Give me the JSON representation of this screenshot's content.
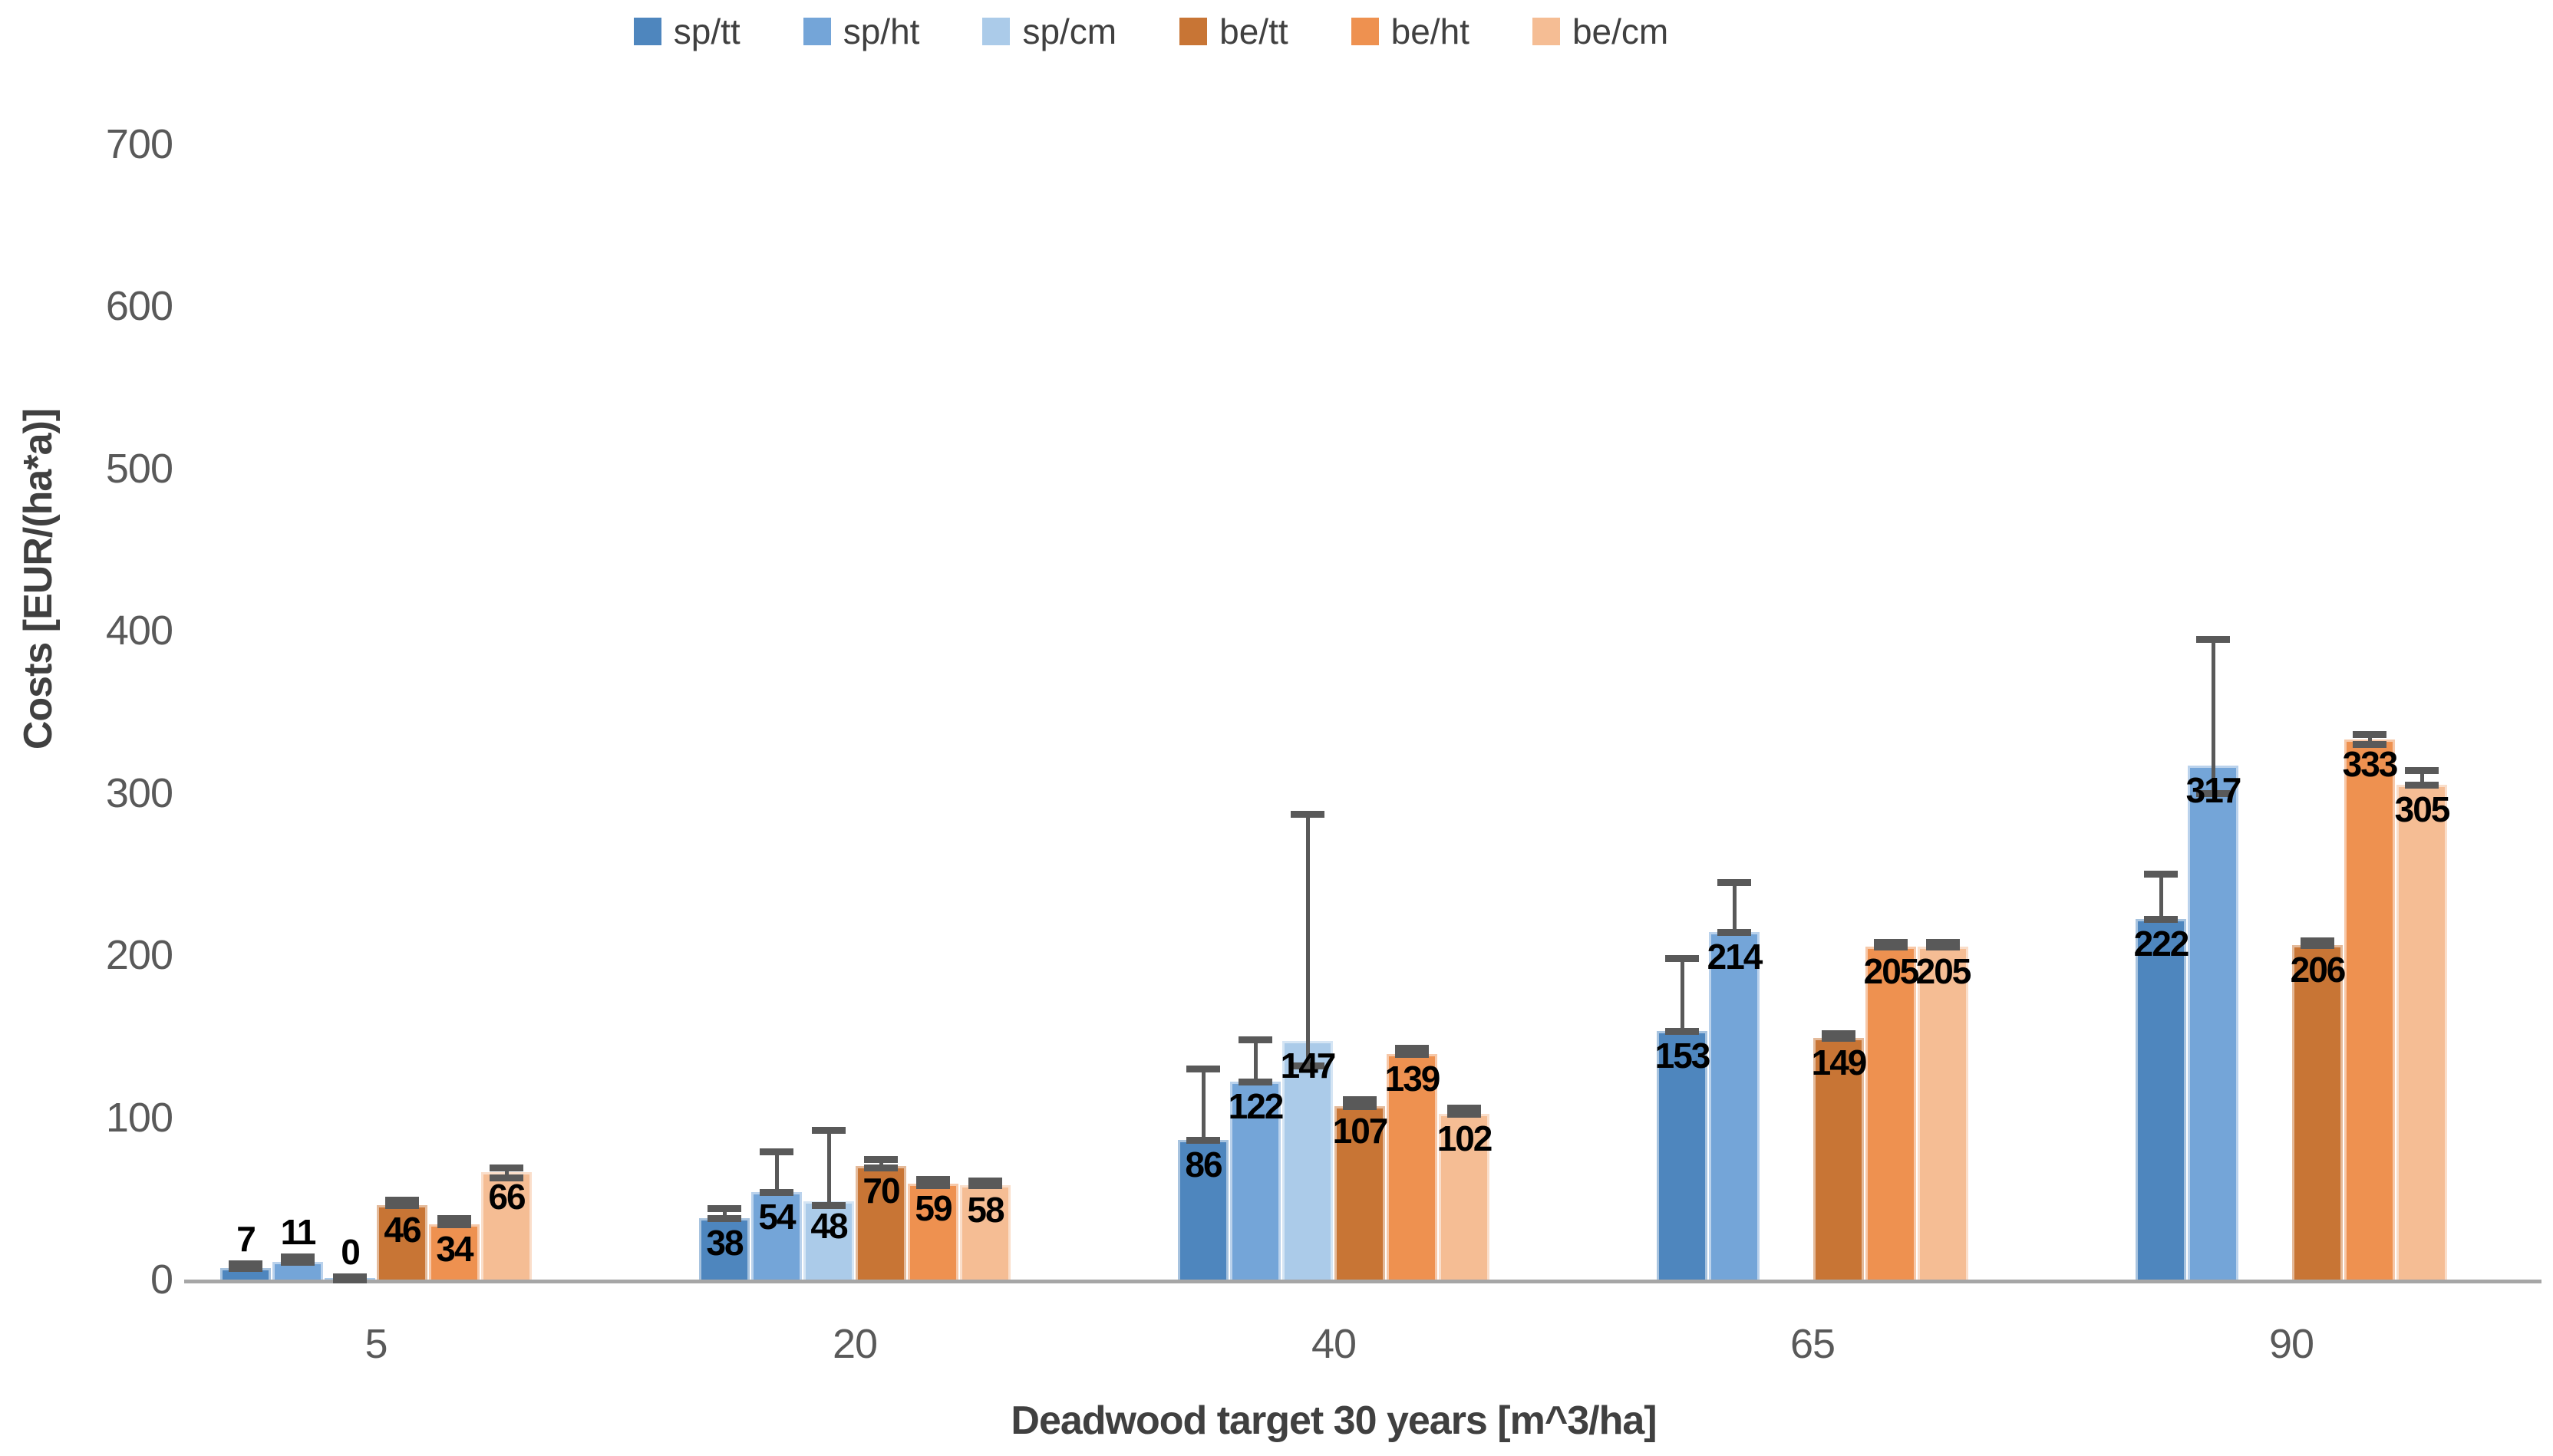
{
  "chart_data": {
    "type": "bar",
    "title": "",
    "xlabel": "Deadwood target 30 years [m^3/ha]",
    "ylabel": "Costs [EUR/(ha*a)]",
    "ylim": [
      0,
      700
    ],
    "yticks": [
      0,
      100,
      200,
      300,
      400,
      500,
      600,
      700
    ],
    "categories": [
      "5",
      "20",
      "40",
      "65",
      "90"
    ],
    "grid": false,
    "legend_position": "top",
    "series": [
      {
        "name": "sp/tt",
        "color": "#4E86BE",
        "values": [
          7,
          38,
          86,
          153,
          222
        ],
        "errors": [
          [
            7,
            10
          ],
          [
            38,
            44
          ],
          [
            86,
            130
          ],
          [
            153,
            198
          ],
          [
            222,
            250
          ]
        ]
      },
      {
        "name": "sp/ht",
        "color": "#74A5D8",
        "values": [
          11,
          54,
          122,
          214,
          317
        ],
        "errors": [
          [
            11,
            14
          ],
          [
            54,
            79
          ],
          [
            122,
            148
          ],
          [
            214,
            245
          ],
          [
            300,
            395
          ]
        ]
      },
      {
        "name": "sp/cm",
        "color": "#ABCBE9",
        "values": [
          0,
          48,
          147,
          null,
          null
        ],
        "errors": [
          [
            0,
            2
          ],
          [
            46,
            92
          ],
          [
            132,
            287
          ],
          null,
          null
        ]
      },
      {
        "name": "be/tt",
        "color": "#C87535",
        "values": [
          46,
          70,
          107,
          149,
          206
        ],
        "errors": [
          [
            46,
            49
          ],
          [
            69,
            74
          ],
          [
            107,
            111
          ],
          [
            149,
            152
          ],
          [
            206,
            209
          ]
        ]
      },
      {
        "name": "be/ht",
        "color": "#EE9150",
        "values": [
          34,
          59,
          139,
          205,
          333
        ],
        "errors": [
          [
            34,
            38
          ],
          [
            58,
            62
          ],
          [
            139,
            143
          ],
          [
            205,
            208
          ],
          [
            330,
            336
          ]
        ]
      },
      {
        "name": "be/cm",
        "color": "#F5BD94",
        "values": [
          66,
          58,
          102,
          205,
          305
        ],
        "errors": [
          [
            63,
            69
          ],
          [
            58,
            61
          ],
          [
            102,
            106
          ],
          [
            205,
            208
          ],
          [
            305,
            314
          ]
        ]
      }
    ],
    "error_bar_color": "#595959",
    "axis_line_color": "#A6A6A6",
    "tick_label_color": "#595959",
    "axis_title_color": "#404040",
    "data_label_color": "#000000"
  }
}
